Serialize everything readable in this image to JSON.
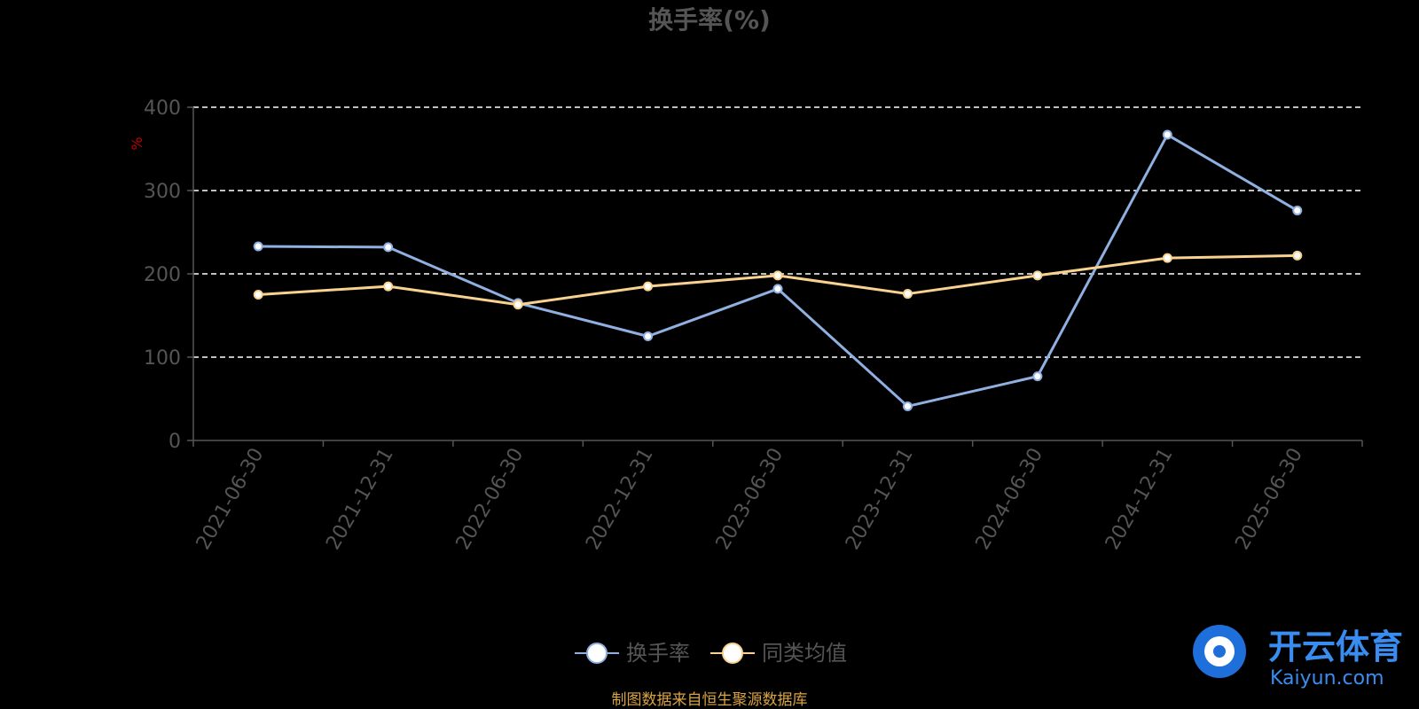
{
  "chart_data": {
    "type": "line",
    "title": "换手率(%)",
    "xlabel": "",
    "ylabel": "%",
    "categories": [
      "2021-06-30",
      "2021-12-31",
      "2022-06-30",
      "2022-12-31",
      "2023-06-30",
      "2023-12-31",
      "2024-06-30",
      "2024-12-31",
      "2025-06-30"
    ],
    "ylim": [
      0,
      400
    ],
    "yticks": [
      0,
      100,
      200,
      300,
      400
    ],
    "grid": true,
    "legend_position": "bottom-center",
    "series": [
      {
        "name": "换手率",
        "color": "#8fb0e0",
        "values": [
          233,
          232,
          165,
          125,
          182,
          41,
          77,
          367,
          276
        ]
      },
      {
        "name": "同类均值",
        "color": "#f8d28e",
        "values": [
          175,
          185,
          163,
          185,
          198,
          176,
          198,
          219,
          222
        ]
      }
    ]
  },
  "source_note": "制图数据来自恒生聚源数据库",
  "watermark": {
    "brand": "开云体育",
    "sub": "Kaiyun.com"
  }
}
